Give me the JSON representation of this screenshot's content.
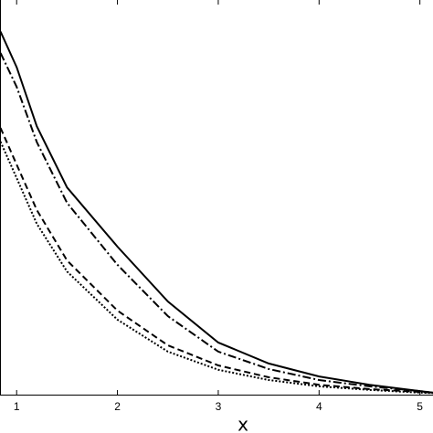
{
  "chart_data": {
    "type": "line",
    "xlabel": "x",
    "x": [
      0.84,
      1.0,
      1.2,
      1.5,
      2.0,
      2.5,
      3.0,
      3.5,
      4.0,
      4.5,
      5.0,
      5.13
    ],
    "series": [
      {
        "color": "#000000",
        "dash": "solid",
        "values": [
          0.92,
          0.83,
          0.68,
          0.525,
          0.375,
          0.236,
          0.132,
          0.079,
          0.046,
          0.025,
          0.009,
          0.005
        ]
      },
      {
        "color": "#000000",
        "dash": "dashdot",
        "values": [
          0.866,
          0.78,
          0.64,
          0.486,
          0.329,
          0.199,
          0.109,
          0.065,
          0.037,
          0.021,
          0.009,
          0.005
        ]
      },
      {
        "color": "#000000",
        "dash": "dashed",
        "values": [
          0.676,
          0.583,
          0.468,
          0.34,
          0.213,
          0.125,
          0.074,
          0.044,
          0.025,
          0.014,
          0.007,
          0.005
        ]
      },
      {
        "color": "#000000",
        "dash": "dotted",
        "values": [
          0.641,
          0.549,
          0.433,
          0.312,
          0.19,
          0.109,
          0.063,
          0.037,
          0.021,
          0.012,
          0.005,
          0.004
        ]
      }
    ],
    "xlim": [
      0.835,
      5.13
    ],
    "xticks": [
      1,
      2,
      3,
      4,
      5
    ],
    "ylim": [
      0,
      1
    ]
  }
}
